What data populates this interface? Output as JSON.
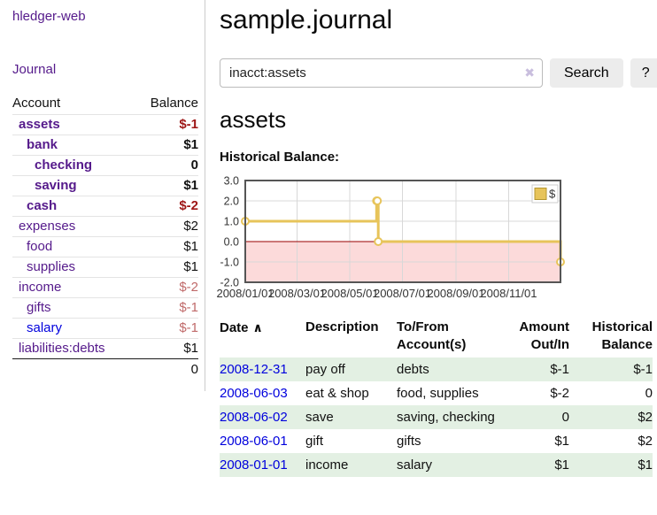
{
  "colors": {
    "link_purple": "#551a8b",
    "link_blue": "#0000dd",
    "negative_strong": "#9e1616",
    "negative_muted": "#c06a6a",
    "stripe_green": "#e3f0e3"
  },
  "sidebar": {
    "app_title": "hledger-web",
    "journal_label": "Journal",
    "accounts_table": {
      "account_header": "Account",
      "balance_header": "Balance",
      "rows": [
        {
          "name": "assets",
          "balance": "$-1",
          "indent": 1,
          "bold": true
        },
        {
          "name": "bank",
          "balance": "$1",
          "indent": 2,
          "bold": true
        },
        {
          "name": "checking",
          "balance": "0",
          "indent": 3,
          "bold": true
        },
        {
          "name": "saving",
          "balance": "$1",
          "indent": 3,
          "bold": true
        },
        {
          "name": "cash",
          "balance": "$-2",
          "indent": 2,
          "bold": true
        },
        {
          "name": "expenses",
          "balance": "$2",
          "indent": 1,
          "bold": false
        },
        {
          "name": "food",
          "balance": "$1",
          "indent": 2,
          "bold": false
        },
        {
          "name": "supplies",
          "balance": "$1",
          "indent": 2,
          "bold": false
        },
        {
          "name": "income",
          "balance": "$-2",
          "indent": 1,
          "bold": false
        },
        {
          "name": "gifts",
          "balance": "$-1",
          "indent": 2,
          "bold": false
        },
        {
          "name": "salary",
          "balance": "$-1",
          "indent": 2,
          "bold": false,
          "link_style": "unvisited"
        },
        {
          "name": "liabilities:debts",
          "balance": "$1",
          "indent": 1,
          "bold": false
        }
      ],
      "total": "0"
    }
  },
  "main": {
    "title": "sample.journal",
    "search": {
      "query": "inacct:assets",
      "clear_icon": "✖",
      "search_label": "Search",
      "help_label": "?"
    },
    "account_heading": "assets",
    "section_label": "Historical Balance:"
  },
  "chart_data": {
    "type": "line",
    "subtype": "step-after",
    "title": "Historical Balance",
    "series": [
      {
        "name": "$",
        "color": "#e7c45a",
        "marker_fill": "#ffffff",
        "points": [
          [
            "2008-01-01",
            1
          ],
          [
            "2008-06-01",
            2
          ],
          [
            "2008-06-02",
            2
          ],
          [
            "2008-06-03",
            0
          ],
          [
            "2008-12-31",
            -1
          ]
        ]
      }
    ],
    "x_range": [
      "2008-01-01",
      "2008-12-31"
    ],
    "ylim": [
      -2,
      3
    ],
    "y_ticks": [
      3.0,
      2.0,
      1.0,
      0.0,
      -1.0,
      -2.0
    ],
    "x_ticks": [
      {
        "label": "2008/01/01",
        "date": "2008-01-01"
      },
      {
        "label": "2008/03/01",
        "date": "2008-03-01"
      },
      {
        "label": "2008/05/01",
        "date": "2008-05-01"
      },
      {
        "label": "2008/07/01",
        "date": "2008-07-01"
      },
      {
        "label": "2008/09/01",
        "date": "2008-09-01"
      },
      {
        "label": "2008/11/01",
        "date": "2008-11-01"
      }
    ],
    "grid": true,
    "negative_region_fill": "#fcdada",
    "zero_line_color": "#990000",
    "border_color": "#555555",
    "grid_color": "#d8d8d8",
    "legend": {
      "label": "$",
      "position": "top-right"
    }
  },
  "register_table": {
    "headers": [
      {
        "label": "Date",
        "align": "left",
        "sort_icon": "∧"
      },
      {
        "label": "Description",
        "align": "left"
      },
      {
        "label": "To/From Account(s)",
        "align": "left"
      },
      {
        "label": "Amount Out/In",
        "align": "right"
      },
      {
        "label": "Historical Balance",
        "align": "right"
      }
    ],
    "rows": [
      {
        "date": "2008-12-31",
        "description": "pay off",
        "accounts": "debts",
        "amount": "$-1",
        "balance": "$-1"
      },
      {
        "date": "2008-06-03",
        "description": "eat & shop",
        "accounts": "food, supplies",
        "amount": "$-2",
        "balance": "0"
      },
      {
        "date": "2008-06-02",
        "description": "save",
        "accounts": "saving, checking",
        "amount": "0",
        "balance": "$2"
      },
      {
        "date": "2008-06-01",
        "description": "gift",
        "accounts": "gifts",
        "amount": "$1",
        "balance": "$2"
      },
      {
        "date": "2008-01-01",
        "description": "income",
        "accounts": "salary",
        "amount": "$1",
        "balance": "$1"
      }
    ]
  }
}
